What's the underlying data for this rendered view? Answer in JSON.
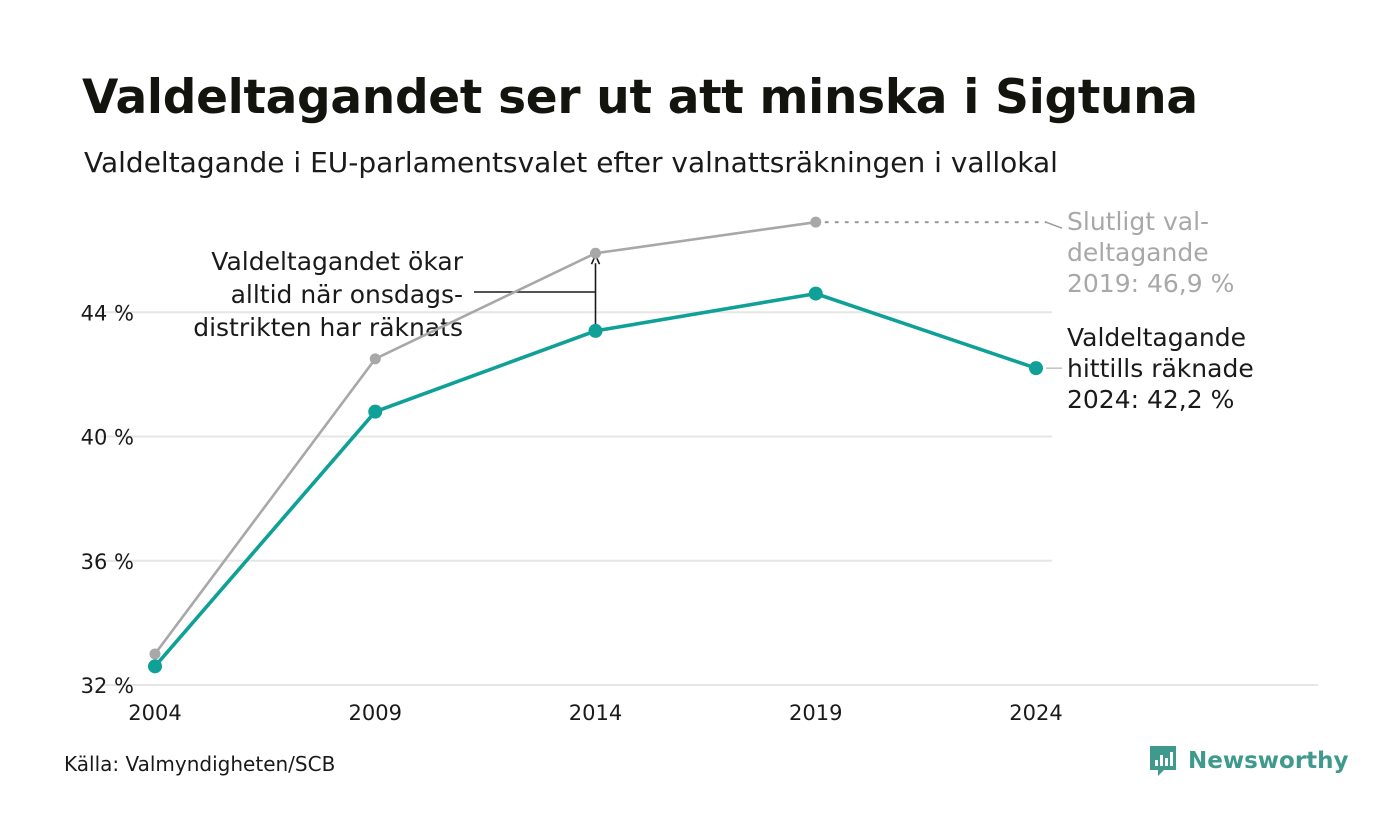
{
  "header": {
    "title": "Valdeltagandet ser ut att minska i Sigtuna",
    "subtitle": "Valdeltagande i EU-parlamentsvalet efter valnattsräkningen i vallokal"
  },
  "footer": {
    "source": "Källa: Valmyndigheten/SCB",
    "brand": "Newsworthy",
    "brand_icon": "bar-chart-logo-icon"
  },
  "colors": {
    "counted": "#0fa097",
    "final": "#a8a8a8",
    "grid": "#e6e6e6",
    "brand": "#3f9a8d"
  },
  "chart_data": {
    "type": "line",
    "x": [
      2004,
      2009,
      2014,
      2019,
      2024
    ],
    "xticks": [
      "2004",
      "2009",
      "2014",
      "2019",
      "2024"
    ],
    "yticks": [
      32,
      36,
      40,
      44
    ],
    "ytick_labels": [
      "32 %",
      "36 %",
      "40 %",
      "44 %"
    ],
    "ylim": [
      32,
      48
    ],
    "grid": true,
    "series": [
      {
        "key": "final",
        "values": [
          33.0,
          42.5,
          45.9,
          46.9,
          null
        ]
      },
      {
        "key": "counted",
        "values": [
          32.6,
          40.8,
          43.4,
          44.6,
          42.2
        ]
      }
    ],
    "annotations": {
      "gap": [
        "Valdeltagandet ökar",
        "alltid när onsdags-",
        "distrikten har räknats"
      ],
      "final_label": [
        "Slutligt val-",
        "deltagande",
        "2019: 46,9 %"
      ],
      "counted_label": [
        "Valdeltagande",
        "hittills räknade",
        "2024: 42,2 %"
      ]
    }
  }
}
